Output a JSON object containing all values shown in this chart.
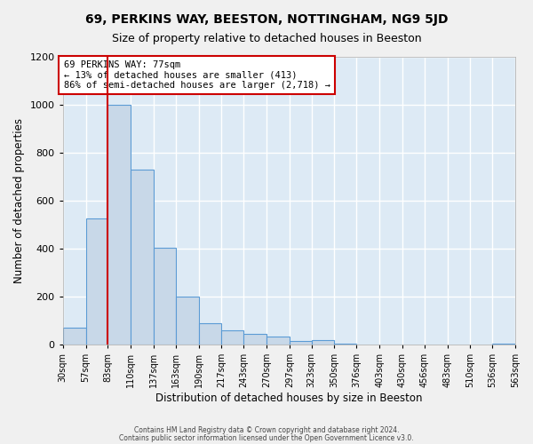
{
  "title": "69, PERKINS WAY, BEESTON, NOTTINGHAM, NG9 5JD",
  "subtitle": "Size of property relative to detached houses in Beeston",
  "xlabel": "Distribution of detached houses by size in Beeston",
  "ylabel": "Number of detached properties",
  "bar_color": "#c8d8e8",
  "bar_edge_color": "#5b9bd5",
  "background_color": "#ddeaf5",
  "grid_color": "#ffffff",
  "vline_x": 83,
  "vline_color": "#cc0000",
  "annotation_title": "69 PERKINS WAY: 77sqm",
  "annotation_line1": "← 13% of detached houses are smaller (413)",
  "annotation_line2": "86% of semi-detached houses are larger (2,718) →",
  "bin_edges": [
    30,
    57,
    83,
    110,
    137,
    163,
    190,
    217,
    243,
    270,
    297,
    323,
    350,
    376,
    403,
    430,
    456,
    483,
    510,
    536,
    563
  ],
  "bin_labels": [
    "30sqm",
    "57sqm",
    "83sqm",
    "110sqm",
    "137sqm",
    "163sqm",
    "190sqm",
    "217sqm",
    "243sqm",
    "270sqm",
    "297sqm",
    "323sqm",
    "350sqm",
    "376sqm",
    "403sqm",
    "430sqm",
    "456sqm",
    "483sqm",
    "510sqm",
    "536sqm",
    "563sqm"
  ],
  "counts": [
    70,
    525,
    1000,
    730,
    405,
    200,
    90,
    60,
    45,
    35,
    15,
    20,
    5,
    2,
    2,
    2,
    2,
    2,
    2,
    5
  ],
  "ylim": [
    0,
    1200
  ],
  "yticks": [
    0,
    200,
    400,
    600,
    800,
    1000,
    1200
  ],
  "footer1": "Contains HM Land Registry data © Crown copyright and database right 2024.",
  "footer2": "Contains public sector information licensed under the Open Government Licence v3.0."
}
